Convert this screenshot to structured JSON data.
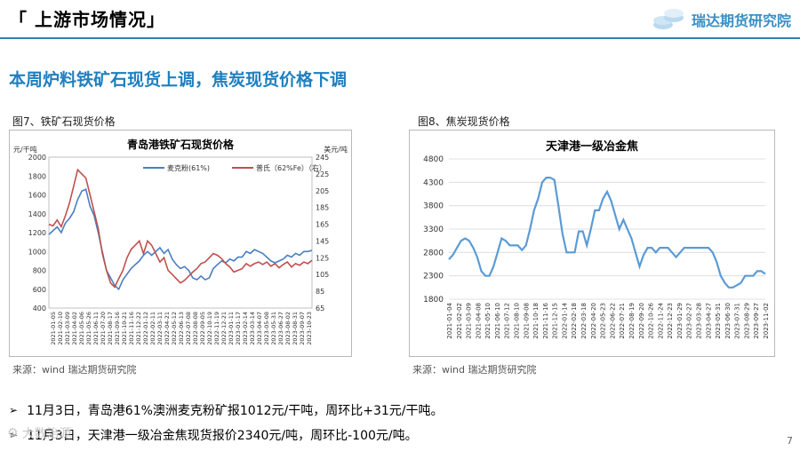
{
  "header": {
    "section_title": "「 上游市场情况」",
    "brand": "瑞达期货研究院"
  },
  "headline": "本周炉料铁矿石现货上调，焦炭现货价格下调",
  "figures": [
    {
      "fig_title": "图7、铁矿石现货价格",
      "source": "来源：wind   瑞达期货研究院"
    },
    {
      "fig_title": "图8、焦炭现货价格",
      "source": "来源：wind   瑞达期货研究院"
    }
  ],
  "bullets": [
    "11月3日，青岛港61%澳洲麦克粉矿报1012元/干吨，周环比+31元/干吨。",
    "11月3日，天津港一级冶金焦现货报价2340元/吨，周环比-100元/吨。"
  ],
  "footer": {
    "page_number": "7",
    "watermark": "大数治源"
  },
  "colors": {
    "accent": "#1f7fbf",
    "series_blue": "#4a7fc1",
    "series_red": "#c0504d",
    "coke_line": "#5b9bd5"
  },
  "chart_data": [
    {
      "type": "line",
      "title": "青岛港铁矿石现货价格",
      "ylabel_left": "元/干吨",
      "ylabel_right": "美元/吨",
      "ylim_left": [
        400,
        2000
      ],
      "yticks_left": [
        "400",
        "600",
        "800",
        "1000",
        "1200",
        "1400",
        "1600",
        "1800",
        "2000"
      ],
      "ylim_right": [
        65,
        245
      ],
      "yticks_right": [
        "65",
        "85",
        "105",
        "125",
        "145",
        "165",
        "185",
        "205",
        "225",
        "245"
      ],
      "legend_position": "top",
      "x_labels": [
        "2021-01-05",
        "2021-02-10",
        "2021-03-09",
        "2021-04-02",
        "2021-05-06",
        "2021-05-26",
        "2021-06-11",
        "2021-07-20",
        "2021-08-17",
        "2021-09-16",
        "2021-10-21",
        "2021-11-16",
        "2021-12-22",
        "2022-01-12",
        "2022-02-11",
        "2022-03-11",
        "2022-04-21",
        "2022-05-12",
        "2022-06-13",
        "2022-07-08",
        "2022-08-08",
        "2022-09-05",
        "2022-10-19",
        "2022-11-19",
        "2022-12-21",
        "2023-01-11",
        "2023-01-17",
        "2023-02-14",
        "2023-03-14",
        "2023-04-07",
        "2023-05-08",
        "2023-05-31",
        "2023-06-27",
        "2023-08-02",
        "2023-08-31",
        "2023-09-07",
        "2023-10-23"
      ],
      "series": [
        {
          "name": "麦克粉(61%)",
          "axis": "left",
          "values": [
            1180,
            1220,
            1260,
            1200,
            1300,
            1350,
            1420,
            1550,
            1640,
            1660,
            1480,
            1380,
            1200,
            1000,
            800,
            720,
            640,
            600,
            700,
            760,
            820,
            860,
            900,
            960,
            1000,
            960,
            1000,
            1040,
            980,
            1020,
            920,
            860,
            820,
            840,
            800,
            720,
            700,
            740,
            700,
            720,
            820,
            860,
            900,
            880,
            920,
            900,
            940,
            940,
            1000,
            980,
            1020,
            1000,
            980,
            940,
            900,
            880,
            900,
            920,
            960,
            940,
            980,
            960,
            1000,
            1000,
            1012
          ]
        },
        {
          "name": "普氏（62%Fe）（右）",
          "axis": "right",
          "values": [
            165,
            163,
            170,
            162,
            175,
            190,
            210,
            230,
            225,
            220,
            200,
            180,
            160,
            130,
            110,
            95,
            90,
            100,
            110,
            125,
            135,
            140,
            145,
            130,
            145,
            140,
            130,
            120,
            125,
            110,
            105,
            100,
            95,
            98,
            103,
            108,
            112,
            118,
            120,
            125,
            130,
            128,
            124,
            118,
            114,
            108,
            110,
            112,
            118,
            115,
            118,
            120,
            117,
            120,
            115,
            118,
            113,
            117,
            120,
            114,
            118,
            116,
            120,
            118,
            122
          ]
        }
      ]
    },
    {
      "type": "line",
      "title": "天津港一级冶金焦",
      "ylim": [
        1800,
        4800
      ],
      "yticks": [
        "1800",
        "2300",
        "2800",
        "3300",
        "3800",
        "4300",
        "4800"
      ],
      "x_labels": [
        "2021-01-04",
        "2021-02-02",
        "2021-03-09",
        "2021-04-08",
        "2021-05-10",
        "2021-06-10",
        "2021-07-12",
        "2021-08-10",
        "2021-09-08",
        "2021-10-18",
        "2021-11-16",
        "2021-12-15",
        "2022-01-14",
        "2022-02-18",
        "2022-03-18",
        "2022-04-20",
        "2022-05-23",
        "2022-06-22",
        "2022-07-21",
        "2022-08-19",
        "2022-09-20",
        "2022-10-26",
        "2022-11-24",
        "2022-12-23",
        "2023-01-29",
        "2023-02-27",
        "2023-03-28",
        "2023-04-27",
        "2023-05-31",
        "2023-06-30",
        "2023-07-31",
        "2023-08-29",
        "2023-09-27",
        "2023-11-02"
      ],
      "series": [
        {
          "name": "天津港一级冶金焦",
          "values": [
            2650,
            2750,
            2900,
            3050,
            3100,
            3050,
            2900,
            2700,
            2400,
            2300,
            2300,
            2500,
            2800,
            3100,
            3050,
            2950,
            2950,
            2950,
            2850,
            2950,
            3300,
            3700,
            3950,
            4300,
            4400,
            4400,
            4350,
            3800,
            3200,
            2800,
            2800,
            2800,
            3250,
            3250,
            2950,
            3300,
            3700,
            3700,
            3950,
            4100,
            3900,
            3600,
            3300,
            3500,
            3300,
            3100,
            2800,
            2500,
            2750,
            2900,
            2900,
            2800,
            2900,
            2900,
            2900,
            2800,
            2700,
            2800,
            2900,
            2900,
            2900,
            2900,
            2900,
            2900,
            2900,
            2800,
            2600,
            2300,
            2150,
            2050,
            2050,
            2100,
            2150,
            2300,
            2300,
            2300,
            2400,
            2400,
            2340
          ]
        }
      ]
    }
  ]
}
